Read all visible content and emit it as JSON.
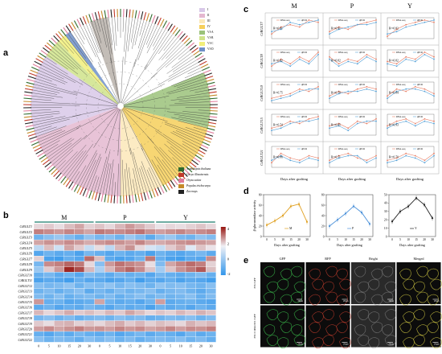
{
  "panel_labels": {
    "a": "a",
    "b": "b",
    "c": "c",
    "d": "d",
    "e": "e"
  },
  "panel_a": {
    "clade_legend": [
      {
        "label": "I",
        "color": "#d8c8e8"
      },
      {
        "label": "II",
        "color": "#e4b8d0"
      },
      {
        "label": "III",
        "color": "#fbe8b8"
      },
      {
        "label": "IV",
        "color": "#f6cf5a"
      },
      {
        "label": "VI-A",
        "color": "#9bc27a"
      },
      {
        "label": "VI-B",
        "color": "#cfe38a"
      },
      {
        "label": "VI-C",
        "color": "#f1ee7a"
      },
      {
        "label": "VI-D",
        "color": "#6f8fc8"
      }
    ],
    "species_legend": [
      {
        "label": "Arabidopsis thaliana",
        "color": "#2e6b2e"
      },
      {
        "label": "Carya illinoinensis",
        "color": "#c0392b"
      },
      {
        "label": "Oryza sativa",
        "color": "#e07a9a"
      },
      {
        "label": "Populus trichocarpa",
        "color": "#c58a2a"
      },
      {
        "label": "Zea mays",
        "color": "#222222"
      }
    ]
  },
  "panel_b": {
    "groups": [
      "M",
      "P",
      "Y"
    ],
    "genes": [
      "CiRGLT1",
      "CiRGLT2",
      "CiRGLT3",
      "CiRGLT4",
      "CiRGLT5",
      "CiRGLT6",
      "CiRGLT7",
      "CiRGLT8",
      "CiRGLT9",
      "CiRGLT10",
      "CiRGLT11",
      "CiRGLT12",
      "CiRGLT13",
      "CiRGLT14",
      "CiRGLT15",
      "CiRGLT16",
      "CiRGLT17",
      "CiRGLT18",
      "CiRGLT19",
      "CiRGLT20",
      "CiRGLT21",
      "CiRGLT22"
    ],
    "days": [
      "0",
      "5",
      "10",
      "15",
      "20",
      "30"
    ],
    "xlabel": "Day after grafting",
    "scale": [
      "4",
      "2",
      "0",
      "-2"
    ],
    "values": [
      [
        0.4,
        0.6,
        0.3,
        0.8,
        1.2,
        0.5,
        0.7,
        0.4,
        0.9,
        1.4,
        1.0,
        0.6,
        0.2,
        0.4,
        0.3,
        0.5,
        0.7,
        0.4
      ],
      [
        1.8,
        1.6,
        1.4,
        1.7,
        1.5,
        1.2,
        1.9,
        1.7,
        1.6,
        1.8,
        2.0,
        1.5,
        1.3,
        1.5,
        1.7,
        1.4,
        1.6,
        1.8
      ],
      [
        -1.5,
        -1.2,
        -1.0,
        -1.3,
        -1.6,
        -1.1,
        -1.4,
        -1.2,
        -1.5,
        -1.0,
        -1.3,
        -1.7,
        -1.2,
        -1.0,
        -1.4,
        -1.5,
        -1.1,
        -1.3
      ],
      [
        1.2,
        1.5,
        1.3,
        1.6,
        1.4,
        1.1,
        1.4,
        1.6,
        1.5,
        1.3,
        1.7,
        1.2,
        1.1,
        1.3,
        1.5,
        1.6,
        1.4,
        1.2
      ],
      [
        -0.6,
        0.8,
        -0.4,
        1.2,
        0.6,
        -0.5,
        0.3,
        -0.6,
        0.9,
        1.5,
        0.4,
        -0.3,
        -0.5,
        0.6,
        1.1,
        -0.2,
        0.7,
        0.2
      ],
      [
        -1.8,
        -1.5,
        -1.7,
        -1.6,
        -1.9,
        -1.4,
        -1.6,
        -1.8,
        -1.5,
        -1.7,
        -1.6,
        -1.9,
        -1.5,
        -1.7,
        -1.8,
        -1.6,
        -1.4,
        -1.7
      ],
      [
        0.5,
        -1.9,
        -2.0,
        -1.6,
        -1.8,
        2.1,
        0.8,
        -1.7,
        -1.9,
        -1.8,
        -1.5,
        1.9,
        -1.6,
        -1.9,
        -2.0,
        -1.7,
        -1.8,
        1.6
      ],
      [
        -1.4,
        1.6,
        1.8,
        2.2,
        1.9,
        0.4,
        -1.2,
        1.4,
        2.0,
        1.7,
        1.5,
        0.3,
        -1.3,
        1.2,
        1.7,
        2.1,
        1.8,
        0.5
      ],
      [
        -1.0,
        0.6,
        1.4,
        3.2,
        2.6,
        0.9,
        -0.8,
        0.9,
        1.8,
        2.2,
        1.6,
        0.7,
        -0.9,
        0.7,
        1.5,
        1.9,
        2.4,
        0.8
      ],
      [
        -1.6,
        -1.4,
        -1.7,
        -1.5,
        -1.8,
        -1.3,
        -1.5,
        -1.7,
        -1.4,
        -1.6,
        -1.5,
        -1.8,
        -1.4,
        -1.6,
        -1.7,
        -1.5,
        -1.3,
        -1.6
      ],
      [
        -1.9,
        -1.7,
        -1.8,
        -2.0,
        -1.6,
        -1.8,
        -1.7,
        -1.9,
        -1.8,
        -1.6,
        -2.0,
        -1.7,
        -1.8,
        -1.6,
        -1.9,
        -1.7,
        -1.8,
        -2.0
      ],
      [
        -1.2,
        -1.4,
        -1.3,
        -1.1,
        -1.5,
        -1.2,
        -1.3,
        -1.1,
        -1.4,
        -1.2,
        -1.3,
        -1.5,
        -1.1,
        -1.3,
        -1.2,
        -1.4,
        -1.5,
        -1.2
      ],
      [
        -1.5,
        -1.3,
        -1.6,
        -1.4,
        -1.2,
        -1.7,
        -1.4,
        -1.6,
        -1.3,
        -1.5,
        -1.4,
        -1.2,
        -1.6,
        -1.4,
        -1.3,
        -1.5,
        -1.7,
        -1.4
      ],
      [
        -1.3,
        -1.5,
        -1.2,
        -1.6,
        -1.4,
        -1.3,
        -1.5,
        -1.3,
        -1.6,
        -1.4,
        -1.2,
        -1.5,
        -1.3,
        -1.5,
        -1.4,
        -1.2,
        -1.6,
        -1.3
      ],
      [
        1.4,
        -1.6,
        -1.5,
        -1.8,
        -1.7,
        -1.6,
        1.2,
        -1.5,
        -1.7,
        -1.6,
        -1.8,
        -1.5,
        1.3,
        -1.7,
        -1.6,
        -1.5,
        -1.7,
        -1.8
      ],
      [
        -1.7,
        -1.5,
        -1.8,
        -1.6,
        -1.7,
        -1.4,
        -1.6,
        -1.8,
        -1.5,
        -1.7,
        -1.6,
        -1.9,
        -1.5,
        -1.7,
        -1.6,
        -1.8,
        -1.5,
        -1.7
      ],
      [
        0.9,
        0.4,
        0.7,
        1.1,
        0.6,
        0.8,
        0.5,
        0.9,
        0.6,
        1.2,
        0.8,
        0.4,
        0.7,
        0.5,
        0.9,
        0.6,
        1.0,
        0.7
      ],
      [
        -1.4,
        -1.2,
        -1.5,
        -1.3,
        -1.6,
        -1.4,
        -1.3,
        -1.5,
        -1.2,
        -1.4,
        -1.3,
        -1.6,
        -1.5,
        -1.3,
        -1.4,
        -1.2,
        -1.5,
        -1.3
      ],
      [
        0.6,
        0.3,
        0.9,
        1.0,
        0.5,
        0.7,
        0.4,
        0.8,
        1.1,
        0.6,
        0.9,
        0.5,
        0.8,
        0.6,
        0.4,
        1.0,
        0.7,
        0.9
      ],
      [
        1.3,
        1.6,
        1.2,
        1.5,
        1.8,
        1.4,
        1.5,
        1.3,
        1.7,
        1.4,
        1.6,
        1.2,
        1.4,
        1.7,
        1.3,
        1.6,
        1.5,
        1.8
      ],
      [
        -1.6,
        -1.8,
        -1.5,
        -1.7,
        -1.4,
        -1.6,
        -1.7,
        -1.5,
        -1.8,
        -1.6,
        -1.4,
        -1.7,
        -1.5,
        -1.6,
        -1.8,
        -1.4,
        -1.7,
        -1.5
      ],
      [
        -1.2,
        -1.5,
        -1.3,
        -1.4,
        -1.6,
        -1.2,
        -1.4,
        -1.2,
        -1.5,
        -1.3,
        -1.6,
        -1.4,
        -1.3,
        -1.4,
        -1.2,
        -1.5,
        -1.3,
        -1.6
      ]
    ]
  },
  "panel_c": {
    "columns": [
      "M",
      "P",
      "Y"
    ],
    "rows": [
      {
        "gene": "CiRGLT7",
        "r2": [
          "R²=0.81",
          "R²=0.91",
          "R²=0.82"
        ]
      },
      {
        "gene": "CiRGLT8",
        "r2": [
          "R²=0.82",
          "R²=0.82",
          "R²=0.82"
        ]
      },
      {
        "gene": "CiRGLT10",
        "r2": [
          "R²=0.75",
          "R²=0.70",
          "R²=0.84"
        ]
      },
      {
        "gene": "CiRGLT15",
        "r2": [
          "R²=0.74",
          "R²=0.85",
          "R²=0.93"
        ]
      },
      {
        "gene": "CiRGLT21",
        "r2": [
          "R²=0.86",
          "R²=0.71",
          "R²=0.70"
        ]
      }
    ],
    "legend": {
      "rna": "RNA-seq",
      "qpcr": "qPCR"
    },
    "ylabel": "Relative expression",
    "xlabel": "Days after grafting",
    "days": [
      "0",
      "5",
      "10",
      "15",
      "20",
      "30"
    ],
    "series": [
      [
        {
          "rna": [
            2,
            5,
            6,
            5,
            8,
            7
          ],
          "qpcr": [
            3,
            4,
            7,
            6,
            7,
            8
          ]
        },
        {
          "rna": [
            3,
            5,
            4,
            6,
            7,
            8
          ],
          "qpcr": [
            2,
            4,
            5,
            6,
            6,
            7
          ]
        },
        {
          "rna": [
            1,
            4,
            6,
            7,
            8,
            7
          ],
          "qpcr": [
            2,
            3,
            5,
            6,
            7,
            8
          ]
        }
      ],
      [
        {
          "rna": [
            2,
            5,
            3,
            6,
            4,
            8
          ],
          "qpcr": [
            3,
            4,
            2,
            5,
            3,
            7
          ]
        },
        {
          "rna": [
            6,
            3,
            5,
            4,
            7,
            5
          ],
          "qpcr": [
            5,
            2,
            4,
            3,
            6,
            4
          ]
        },
        {
          "rna": [
            4,
            3,
            6,
            5,
            8,
            6
          ],
          "qpcr": [
            3,
            2,
            5,
            4,
            7,
            5
          ]
        }
      ],
      [
        {
          "rna": [
            2,
            3,
            4,
            6,
            5,
            7
          ],
          "qpcr": [
            1,
            2,
            3,
            5,
            6,
            6
          ]
        },
        {
          "rna": [
            3,
            5,
            4,
            6,
            7,
            6
          ],
          "qpcr": [
            2,
            4,
            5,
            5,
            6,
            5
          ]
        },
        {
          "rna": [
            3,
            6,
            5,
            7,
            6,
            4
          ],
          "qpcr": [
            2,
            5,
            6,
            6,
            5,
            3
          ]
        }
      ],
      [
        {
          "rna": [
            3,
            4,
            6,
            5,
            7,
            8
          ],
          "qpcr": [
            2,
            3,
            5,
            6,
            6,
            7
          ]
        },
        {
          "rna": [
            4,
            5,
            3,
            6,
            5,
            7
          ],
          "qpcr": [
            3,
            4,
            2,
            5,
            6,
            6
          ]
        },
        {
          "rna": [
            4,
            6,
            7,
            5,
            7,
            6
          ],
          "qpcr": [
            3,
            5,
            6,
            4,
            6,
            5
          ]
        }
      ],
      [
        {
          "rna": [
            2,
            6,
            4,
            3,
            5,
            4
          ],
          "qpcr": [
            3,
            5,
            3,
            2,
            4,
            3
          ]
        },
        {
          "rna": [
            3,
            5,
            6,
            4,
            3,
            5
          ],
          "qpcr": [
            2,
            4,
            5,
            5,
            2,
            4
          ]
        },
        {
          "rna": [
            3,
            4,
            6,
            5,
            3,
            6
          ],
          "qpcr": [
            2,
            3,
            5,
            4,
            2,
            5
          ]
        }
      ]
    ]
  },
  "panel_d": {
    "ylabel": "β-glucuronidase activity",
    "xlabel": "Days after grafting",
    "days": [
      "0",
      "5",
      "10",
      "15",
      "20",
      "30"
    ],
    "charts": [
      {
        "name": "M",
        "color": "#e0a020",
        "values": [
          22,
          30,
          40,
          58,
          62,
          28
        ],
        "ylim": [
          0,
          80
        ],
        "ticks": [
          "0",
          "20",
          "40",
          "60",
          "80"
        ]
      },
      {
        "name": "P",
        "color": "#4a90d9",
        "values": [
          20,
          32,
          44,
          58,
          46,
          24
        ],
        "ylim": [
          0,
          80
        ],
        "ticks": [
          "0",
          "20",
          "40",
          "60",
          "80"
        ]
      },
      {
        "name": "Y",
        "color": "#222222",
        "values": [
          18,
          30,
          36,
          46,
          38,
          22
        ],
        "ylim": [
          0,
          50
        ],
        "ticks": [
          "0",
          "10",
          "20",
          "30",
          "40",
          "50"
        ]
      }
    ]
  },
  "panel_e": {
    "columns": [
      "GFP",
      "RFP",
      "Bright",
      "Merged"
    ],
    "rows": [
      "35S::GFP",
      "35S::CiRGLT21::GFP"
    ],
    "scale_bar": "20μm"
  }
}
